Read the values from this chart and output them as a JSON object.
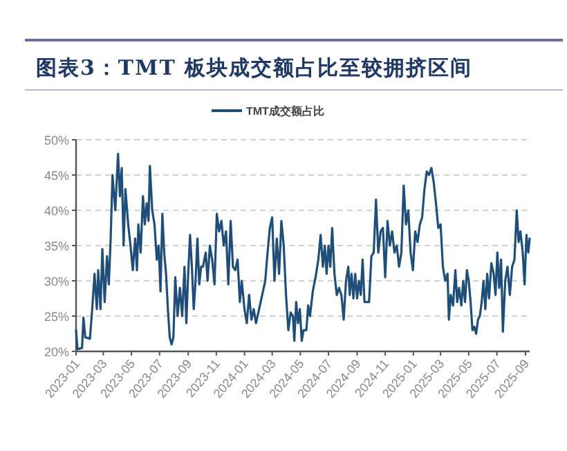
{
  "chart_data": {
    "type": "line",
    "title": "图表3：TMT 板块成交额占比至较拥挤区间",
    "x": [
      "2023-01-01",
      "2023-01-04",
      "2023-01-14",
      "2023-01-17",
      "2023-01-21",
      "2023-01-31",
      "2023-02-05",
      "2023-02-10",
      "2023-02-15",
      "2023-02-18",
      "2023-02-23",
      "2023-02-27",
      "2023-03-04",
      "2023-03-09",
      "2023-03-13",
      "2023-03-17",
      "2023-03-21",
      "2023-03-27",
      "2023-04-02",
      "2023-04-06",
      "2023-04-10",
      "2023-04-14",
      "2023-04-18",
      "2023-04-24",
      "2023-04-29",
      "2023-05-04",
      "2023-05-09",
      "2023-05-13",
      "2023-05-16",
      "2023-05-21",
      "2023-05-26",
      "2023-05-30",
      "2023-06-03",
      "2023-06-07",
      "2023-06-10",
      "2023-06-15",
      "2023-06-20",
      "2023-06-25",
      "2023-06-29",
      "2023-07-03",
      "2023-07-07",
      "2023-07-11",
      "2023-07-15",
      "2023-07-19",
      "2023-07-23",
      "2023-07-27",
      "2023-07-31",
      "2023-08-04",
      "2023-08-09",
      "2023-08-14",
      "2023-08-19",
      "2023-08-24",
      "2023-08-28",
      "2023-09-01",
      "2023-09-05",
      "2023-09-09",
      "2023-09-13",
      "2023-09-17",
      "2023-09-21",
      "2023-09-25",
      "2023-09-29",
      "2023-10-03",
      "2023-10-09",
      "2023-10-13",
      "2023-10-18",
      "2023-10-23",
      "2023-10-28",
      "2023-11-02",
      "2023-11-07",
      "2023-11-12",
      "2023-11-17",
      "2023-11-22",
      "2023-11-27",
      "2023-12-02",
      "2023-12-07",
      "2023-12-12",
      "2023-12-17",
      "2023-12-22",
      "2023-12-26",
      "2024-01-01",
      "2024-01-06",
      "2024-01-11",
      "2024-01-16",
      "2024-01-21",
      "2024-01-26",
      "2024-01-31",
      "2024-02-05",
      "2024-02-15",
      "2024-02-20",
      "2024-02-25",
      "2024-03-01",
      "2024-03-06",
      "2024-03-11",
      "2024-03-16",
      "2024-03-21",
      "2024-03-26",
      "2024-03-31",
      "2024-04-05",
      "2024-04-10",
      "2024-04-15",
      "2024-04-18",
      "2024-04-22",
      "2024-04-26",
      "2024-04-30",
      "2024-05-04",
      "2024-05-08",
      "2024-05-14",
      "2024-05-18",
      "2024-05-22",
      "2024-05-28",
      "2024-06-03",
      "2024-06-09",
      "2024-06-14",
      "2024-06-19",
      "2024-06-23",
      "2024-06-27",
      "2024-07-01",
      "2024-07-05",
      "2024-07-09",
      "2024-07-14",
      "2024-07-19",
      "2024-07-24",
      "2024-07-29",
      "2024-08-03",
      "2024-08-08",
      "2024-08-13",
      "2024-08-16",
      "2024-08-20",
      "2024-08-24",
      "2024-08-28",
      "2024-09-01",
      "2024-09-05",
      "2024-09-09",
      "2024-09-13",
      "2024-09-17",
      "2024-09-22",
      "2024-09-27",
      "2024-10-02",
      "2024-10-07",
      "2024-10-12",
      "2024-10-17",
      "2024-10-22",
      "2024-10-27",
      "2024-11-01",
      "2024-11-06",
      "2024-11-11",
      "2024-11-16",
      "2024-11-21",
      "2024-11-26",
      "2024-12-01",
      "2024-12-06",
      "2024-12-11",
      "2024-12-16",
      "2024-12-21",
      "2024-12-26",
      "2024-12-31",
      "2025-01-05",
      "2025-01-10",
      "2025-01-15",
      "2025-01-20",
      "2025-01-25",
      "2025-01-30",
      "2025-02-04",
      "2025-02-09",
      "2025-02-14",
      "2025-02-19",
      "2025-02-24",
      "2025-03-01",
      "2025-03-06",
      "2025-03-11",
      "2025-03-16",
      "2025-03-19",
      "2025-03-23",
      "2025-03-28",
      "2025-04-02",
      "2025-04-06",
      "2025-04-10",
      "2025-04-15",
      "2025-04-19",
      "2025-04-23",
      "2025-04-27",
      "2025-05-01",
      "2025-05-05",
      "2025-05-09",
      "2025-05-13",
      "2025-05-17",
      "2025-05-21",
      "2025-05-25",
      "2025-05-29",
      "2025-06-02",
      "2025-06-06",
      "2025-06-10",
      "2025-06-14",
      "2025-06-19",
      "2025-06-24",
      "2025-06-28",
      "2025-07-02",
      "2025-07-06",
      "2025-07-10",
      "2025-07-14",
      "2025-07-19",
      "2025-07-24",
      "2025-07-29",
      "2025-08-03",
      "2025-08-08",
      "2025-08-13",
      "2025-08-17",
      "2025-08-21",
      "2025-08-26",
      "2025-08-30",
      "2025-09-03",
      "2025-09-07",
      "2025-09-10"
    ],
    "series": [
      {
        "name": "TMT成交额占比",
        "color": "#1f4e79",
        "values": [
          23,
          20.3,
          20.5,
          24.8,
          22,
          21.8,
          26,
          31,
          26,
          31.5,
          26,
          34.5,
          27,
          33.5,
          29.5,
          36,
          45,
          40,
          48,
          42,
          46,
          35,
          43,
          38,
          35,
          31.5,
          36,
          31.5,
          38,
          34,
          42,
          38,
          41,
          38.5,
          46.3,
          40,
          38,
          33,
          35,
          28.5,
          39.5,
          34,
          31,
          26,
          22,
          21,
          22,
          30.5,
          25,
          29,
          25,
          32,
          24,
          31,
          36.5,
          32,
          26,
          30,
          36,
          29.5,
          32,
          32,
          34,
          30,
          35,
          33,
          29.5,
          39.5,
          37,
          38.5,
          35,
          37,
          29.5,
          38.5,
          32,
          31.5,
          33,
          27,
          30,
          26,
          24,
          28,
          24.5,
          26,
          24,
          25.5,
          27,
          30,
          34,
          37.5,
          39,
          30,
          36,
          31,
          38.5,
          35,
          28,
          23,
          25.5,
          25,
          21.5,
          27,
          24,
          26,
          21.5,
          23,
          23,
          26.5,
          25,
          28.5,
          30.5,
          33,
          36.5,
          32,
          35,
          31,
          35,
          32,
          37.5,
          31,
          28,
          29,
          28,
          24.5,
          30,
          32,
          28,
          31,
          27.5,
          31,
          27.5,
          30,
          28,
          33,
          27,
          27,
          27,
          33.5,
          34,
          41.5,
          34,
          37,
          37.5,
          30.5,
          38.5,
          35,
          37,
          34,
          35,
          32,
          34,
          43.5,
          38,
          40,
          34,
          31.5,
          37,
          35.5,
          38,
          39,
          43,
          45.5,
          45,
          46,
          44,
          41,
          37.5,
          38,
          32,
          30,
          31,
          24.5,
          28,
          26.5,
          31.5,
          27,
          29,
          26.5,
          30,
          27,
          31.5,
          30,
          27,
          23,
          23.5,
          22.5,
          24.5,
          25,
          27,
          30,
          26,
          31,
          27.5,
          32.5,
          31,
          28,
          34,
          29,
          33,
          22.8,
          30,
          32,
          28,
          32,
          33,
          40,
          35.5,
          37,
          34,
          29.5,
          36.5,
          34,
          36
        ]
      }
    ],
    "xlim": [
      "2023-01-01",
      "2025-09-10"
    ],
    "xticks": [
      "2023-01",
      "2023-03",
      "2023-05",
      "2023-07",
      "2023-09",
      "2023-11",
      "2024-01",
      "2024-03",
      "2024-05",
      "2024-07",
      "2024-09",
      "2024-11",
      "2025-01",
      "2025-03",
      "2025-05",
      "2025-07",
      "2025-09"
    ],
    "ylim": [
      20,
      50
    ],
    "yticks": [
      {
        "value": 20,
        "label": "20%"
      },
      {
        "value": 25,
        "label": "25%"
      },
      {
        "value": 30,
        "label": "30%"
      },
      {
        "value": 35,
        "label": "35%"
      },
      {
        "value": 40,
        "label": "40%"
      },
      {
        "value": 45,
        "label": "45%"
      },
      {
        "value": 50,
        "label": "50%"
      }
    ],
    "grid": "y",
    "legend": "top"
  }
}
